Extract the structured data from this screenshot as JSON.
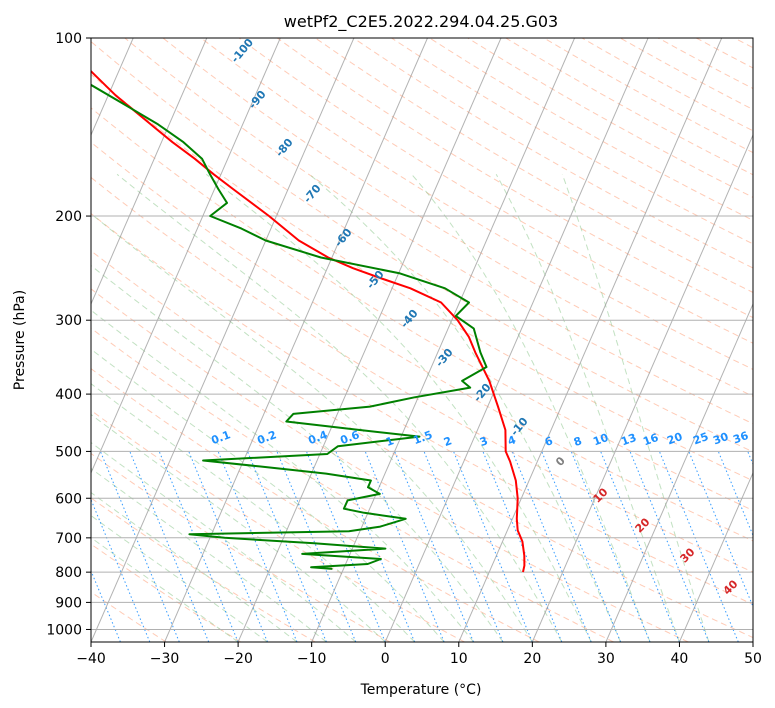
{
  "chart_data": {
    "type": "line",
    "chart_kind": "Skew-T log-P diagram",
    "title": "wetPf2_C2E5.2022.294.04.25.G03",
    "xlabel": "Temperature (°C)",
    "ylabel": "Pressure (hPa)",
    "xlim": [
      -40,
      50
    ],
    "ylim_hpa": [
      1050,
      100
    ],
    "y_scale": "log",
    "skew_deg_per_decade": 35,
    "grid": true,
    "x_ticks": [
      -40,
      -30,
      -20,
      -10,
      0,
      10,
      20,
      30,
      40,
      50
    ],
    "x_tick_labels": [
      "−40",
      "−30",
      "−20",
      "−10",
      "0",
      "10",
      "20",
      "30",
      "40",
      "50"
    ],
    "y_ticks": [
      1000,
      900,
      800,
      700,
      600,
      500,
      400,
      300,
      200,
      100
    ],
    "y_tick_labels": [
      "1000",
      "900",
      "800",
      "700",
      "600",
      "500",
      "400",
      "300",
      "200",
      "100"
    ],
    "series": [
      {
        "role": "temperature",
        "color": "#ff0000",
        "pressure": [
          800,
          780,
          750,
          710,
          680,
          650,
          600,
          560,
          520,
          500,
          460,
          420,
          380,
          340,
          320,
          300,
          280,
          265,
          255,
          245,
          235,
          220,
          200,
          180,
          170,
          160,
          150,
          140,
          125,
          110,
          100
        ],
        "temperature": [
          14.6,
          14.4,
          13.8,
          12.7,
          11.4,
          10.6,
          9.5,
          8.2,
          6.3,
          5.1,
          3.8,
          1.4,
          -1.3,
          -4.9,
          -6.7,
          -9.2,
          -12.5,
          -17.5,
          -22.0,
          -26.5,
          -30.5,
          -35.5,
          -41.0,
          -47.5,
          -51.0,
          -54.5,
          -58.5,
          -62.5,
          -69.0,
          -75.5,
          -79.0
        ]
      },
      {
        "role": "dewpoint",
        "color": "#008000",
        "pressure": [
          790,
          785,
          775,
          760,
          745,
          730,
          715,
          700,
          690,
          682,
          670,
          650,
          635,
          625,
          605,
          590,
          575,
          560,
          545,
          530,
          518,
          505,
          490,
          472,
          460,
          445,
          432,
          420,
          405,
          390,
          380,
          360,
          340,
          310,
          295,
          280,
          265,
          250,
          235,
          220,
          210,
          200,
          190,
          180,
          170,
          160,
          150,
          140,
          130,
          120,
          110,
          100
        ],
        "temperature": [
          -11.5,
          -14.5,
          -7.0,
          -5.5,
          -16.5,
          -5.5,
          -15.5,
          -28.0,
          -33.0,
          -11.5,
          -7.5,
          -4.5,
          -10.5,
          -13.5,
          -13.5,
          -9.5,
          -11.5,
          -11.5,
          -18.0,
          -27.5,
          -35.5,
          -19.0,
          -18.0,
          -7.5,
          -16.0,
          -26.5,
          -26.0,
          -16.0,
          -10.5,
          -3.5,
          -5.0,
          -2.5,
          -4.2,
          -6.5,
          -9.7,
          -8.7,
          -12.8,
          -19.8,
          -31.5,
          -40.0,
          -44.0,
          -49.0,
          -47.5,
          -49.5,
          -51.5,
          -53.5,
          -57.0,
          -61.5,
          -67.0,
          -73.0,
          -80.0,
          -88.5
        ]
      }
    ],
    "annotations": {
      "dry_adiabat_labels": [
        "-100",
        "-90",
        "-80",
        "-70",
        "-60",
        "-50",
        "-40",
        "-30",
        "-20",
        "-10"
      ],
      "dry_adiabat_label_color": "#1f77b4",
      "mixing_ratio_labels": [
        "0.1",
        "0.2",
        "0.4",
        "0.6",
        "1",
        "1.5",
        "2",
        "3",
        "4",
        "6",
        "8",
        "10",
        "13",
        "16",
        "20",
        "25",
        "30",
        "36"
      ],
      "mixing_ratio_label_color": "#1e90ff",
      "moist_adiabat_labels": [
        "0",
        "10",
        "20",
        "30",
        "40"
      ],
      "moist_adiabat_label_colors": [
        "#808080",
        "#d62728",
        "#d62728",
        "#d62728",
        "#d62728"
      ]
    },
    "background_line_colors": {
      "dry_adiabats": "#ffa07a",
      "moist_adiabats": "#90c890",
      "mixing_ratio": "#1e90ff",
      "isotherms": "#999999",
      "grid": "#b0b0b0"
    }
  }
}
